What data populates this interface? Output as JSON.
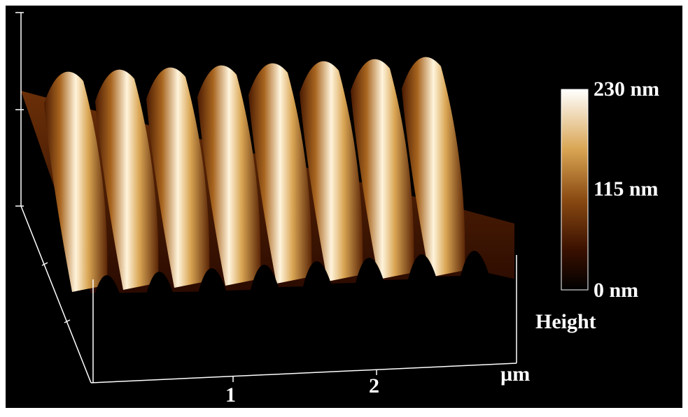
{
  "colorbar": {
    "labels": [
      "230 nm",
      "115 nm",
      "0 nm"
    ],
    "title": "Height"
  },
  "axis": {
    "labels": [
      "1",
      "2"
    ],
    "unit": "µm"
  }
}
